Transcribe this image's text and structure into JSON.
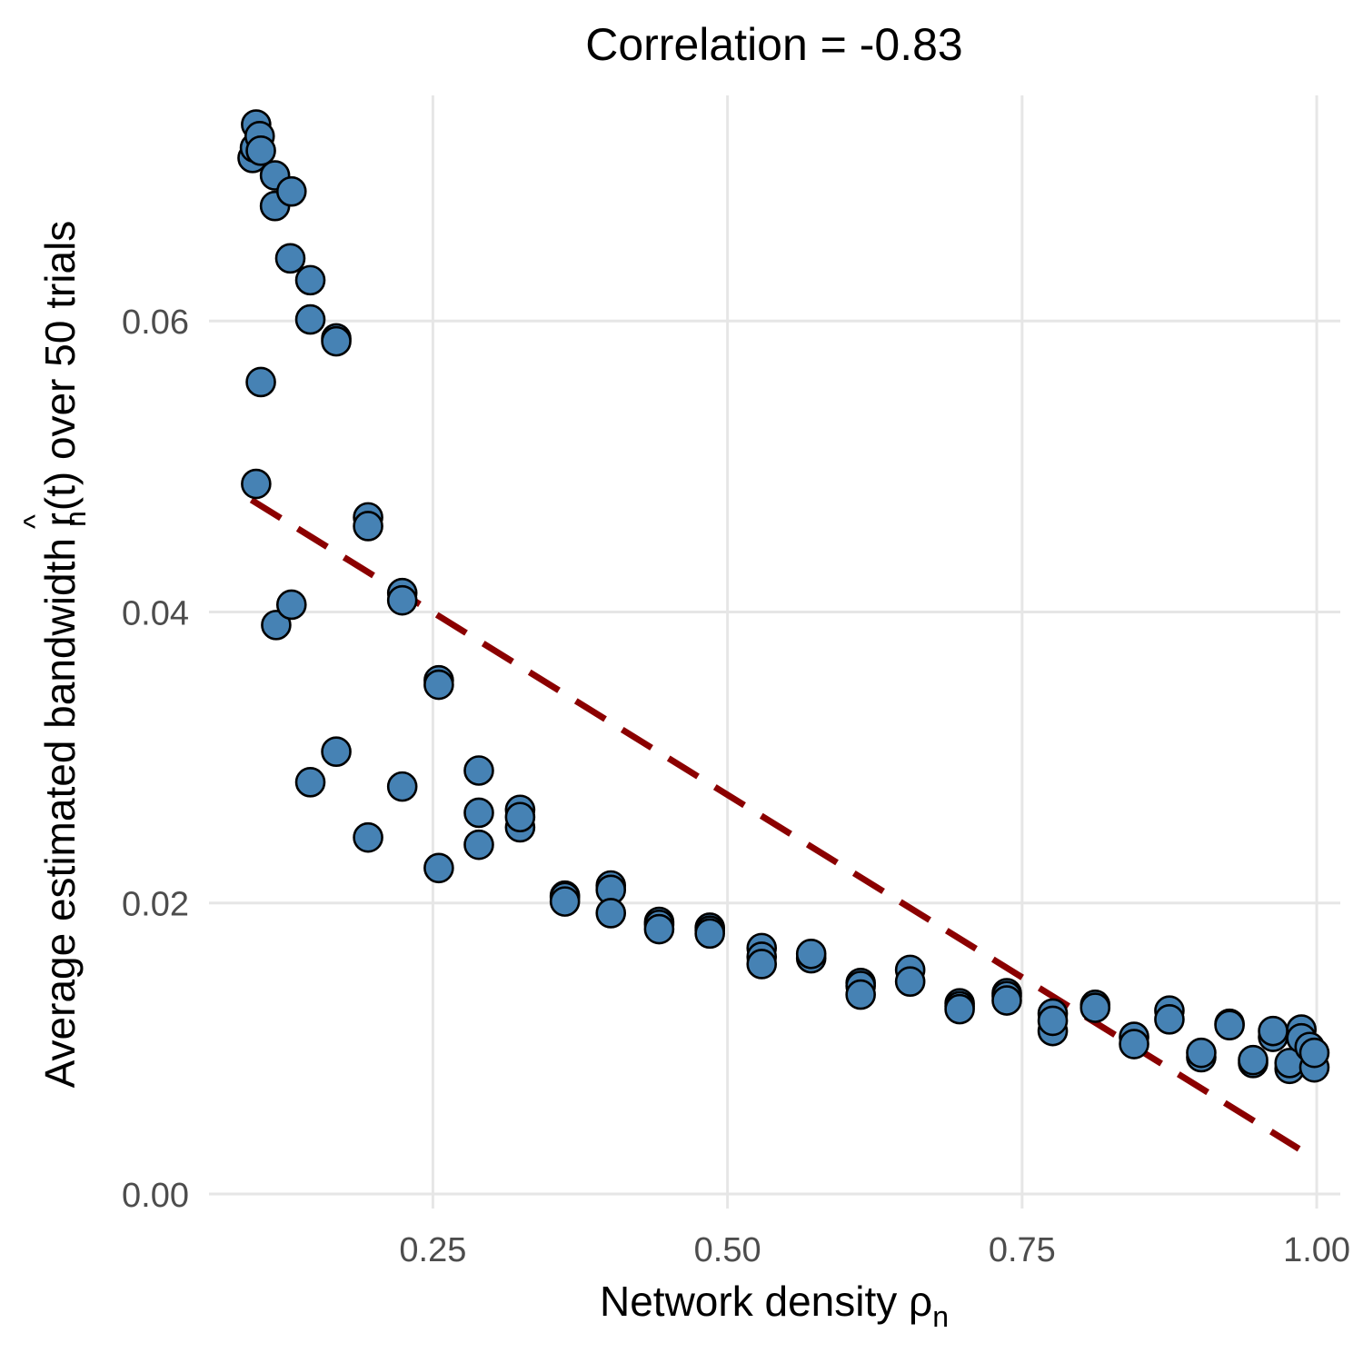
{
  "chart_data": {
    "type": "scatter",
    "title": "Correlation = -0.83",
    "xlabel": {
      "main": "Network density ",
      "symbol": "ρ",
      "subscript": "n"
    },
    "ylabel": {
      "prefix": "Average estimated bandwidth ",
      "symbol": "r",
      "hat": "^",
      "subscript": "n",
      "suffix": "(t) over 50 trials"
    },
    "xlim": [
      0.06,
      1.02
    ],
    "ylim": [
      -0.001,
      0.0755
    ],
    "xticks": [
      0.25,
      0.5,
      0.75,
      1.0
    ],
    "xtick_labels": [
      "0.25",
      "0.50",
      "0.75",
      "1.00"
    ],
    "yticks": [
      0.0,
      0.02,
      0.04,
      0.06
    ],
    "ytick_labels": [
      "0.00",
      "0.02",
      "0.04",
      "0.06"
    ],
    "grid": true,
    "point_color": "#4682b4",
    "point_outline": "#000000",
    "trend_color": "#8b0000",
    "trend_style": "dashed",
    "trend_line": {
      "x": [
        0.096,
        0.985
      ],
      "y": [
        0.0477,
        0.0031
      ]
    },
    "points": [
      {
        "x": 0.097,
        "y": 0.0712
      },
      {
        "x": 0.099,
        "y": 0.0719
      },
      {
        "x": 0.1,
        "y": 0.0735
      },
      {
        "x": 0.103,
        "y": 0.0727
      },
      {
        "x": 0.104,
        "y": 0.0717
      },
      {
        "x": 0.1,
        "y": 0.0488
      },
      {
        "x": 0.104,
        "y": 0.0558
      },
      {
        "x": 0.116,
        "y": 0.07
      },
      {
        "x": 0.116,
        "y": 0.0679
      },
      {
        "x": 0.117,
        "y": 0.0391
      },
      {
        "x": 0.13,
        "y": 0.0689
      },
      {
        "x": 0.129,
        "y": 0.0643
      },
      {
        "x": 0.13,
        "y": 0.0405
      },
      {
        "x": 0.146,
        "y": 0.0628
      },
      {
        "x": 0.146,
        "y": 0.0601
      },
      {
        "x": 0.146,
        "y": 0.0283
      },
      {
        "x": 0.168,
        "y": 0.0588
      },
      {
        "x": 0.168,
        "y": 0.0586
      },
      {
        "x": 0.168,
        "y": 0.0304
      },
      {
        "x": 0.195,
        "y": 0.0465
      },
      {
        "x": 0.195,
        "y": 0.0459
      },
      {
        "x": 0.195,
        "y": 0.0245
      },
      {
        "x": 0.224,
        "y": 0.0413
      },
      {
        "x": 0.224,
        "y": 0.0408
      },
      {
        "x": 0.224,
        "y": 0.028
      },
      {
        "x": 0.255,
        "y": 0.0353
      },
      {
        "x": 0.255,
        "y": 0.035
      },
      {
        "x": 0.255,
        "y": 0.0224
      },
      {
        "x": 0.289,
        "y": 0.0291
      },
      {
        "x": 0.289,
        "y": 0.0262
      },
      {
        "x": 0.289,
        "y": 0.024
      },
      {
        "x": 0.324,
        "y": 0.0264
      },
      {
        "x": 0.324,
        "y": 0.0252
      },
      {
        "x": 0.324,
        "y": 0.0259
      },
      {
        "x": 0.362,
        "y": 0.0205
      },
      {
        "x": 0.362,
        "y": 0.0204
      },
      {
        "x": 0.362,
        "y": 0.0201
      },
      {
        "x": 0.401,
        "y": 0.0212
      },
      {
        "x": 0.401,
        "y": 0.0209
      },
      {
        "x": 0.401,
        "y": 0.0193
      },
      {
        "x": 0.442,
        "y": 0.0187
      },
      {
        "x": 0.442,
        "y": 0.0185
      },
      {
        "x": 0.442,
        "y": 0.0182
      },
      {
        "x": 0.485,
        "y": 0.0183
      },
      {
        "x": 0.485,
        "y": 0.0181
      },
      {
        "x": 0.485,
        "y": 0.0179
      },
      {
        "x": 0.529,
        "y": 0.0169
      },
      {
        "x": 0.529,
        "y": 0.0163
      },
      {
        "x": 0.529,
        "y": 0.0158
      },
      {
        "x": 0.571,
        "y": 0.0162
      },
      {
        "x": 0.571,
        "y": 0.0165
      },
      {
        "x": 0.613,
        "y": 0.0145
      },
      {
        "x": 0.613,
        "y": 0.0143
      },
      {
        "x": 0.613,
        "y": 0.0137
      },
      {
        "x": 0.655,
        "y": 0.0154
      },
      {
        "x": 0.655,
        "y": 0.0146
      },
      {
        "x": 0.697,
        "y": 0.0131
      },
      {
        "x": 0.697,
        "y": 0.0129
      },
      {
        "x": 0.697,
        "y": 0.0127
      },
      {
        "x": 0.737,
        "y": 0.0138
      },
      {
        "x": 0.737,
        "y": 0.0136
      },
      {
        "x": 0.737,
        "y": 0.0133
      },
      {
        "x": 0.776,
        "y": 0.0124
      },
      {
        "x": 0.776,
        "y": 0.0112
      },
      {
        "x": 0.776,
        "y": 0.0119
      },
      {
        "x": 0.812,
        "y": 0.013
      },
      {
        "x": 0.812,
        "y": 0.0128
      },
      {
        "x": 0.845,
        "y": 0.0108
      },
      {
        "x": 0.845,
        "y": 0.0103
      },
      {
        "x": 0.875,
        "y": 0.0126
      },
      {
        "x": 0.875,
        "y": 0.012
      },
      {
        "x": 0.902,
        "y": 0.0094
      },
      {
        "x": 0.902,
        "y": 0.0097
      },
      {
        "x": 0.926,
        "y": 0.0117
      },
      {
        "x": 0.926,
        "y": 0.0116
      },
      {
        "x": 0.946,
        "y": 0.009
      },
      {
        "x": 0.946,
        "y": 0.0092
      },
      {
        "x": 0.963,
        "y": 0.0108
      },
      {
        "x": 0.963,
        "y": 0.0112
      },
      {
        "x": 0.977,
        "y": 0.0086
      },
      {
        "x": 0.977,
        "y": 0.009
      },
      {
        "x": 0.987,
        "y": 0.0113
      },
      {
        "x": 0.987,
        "y": 0.0107
      },
      {
        "x": 0.994,
        "y": 0.0101
      },
      {
        "x": 0.998,
        "y": 0.0087
      },
      {
        "x": 0.998,
        "y": 0.0097
      }
    ]
  }
}
